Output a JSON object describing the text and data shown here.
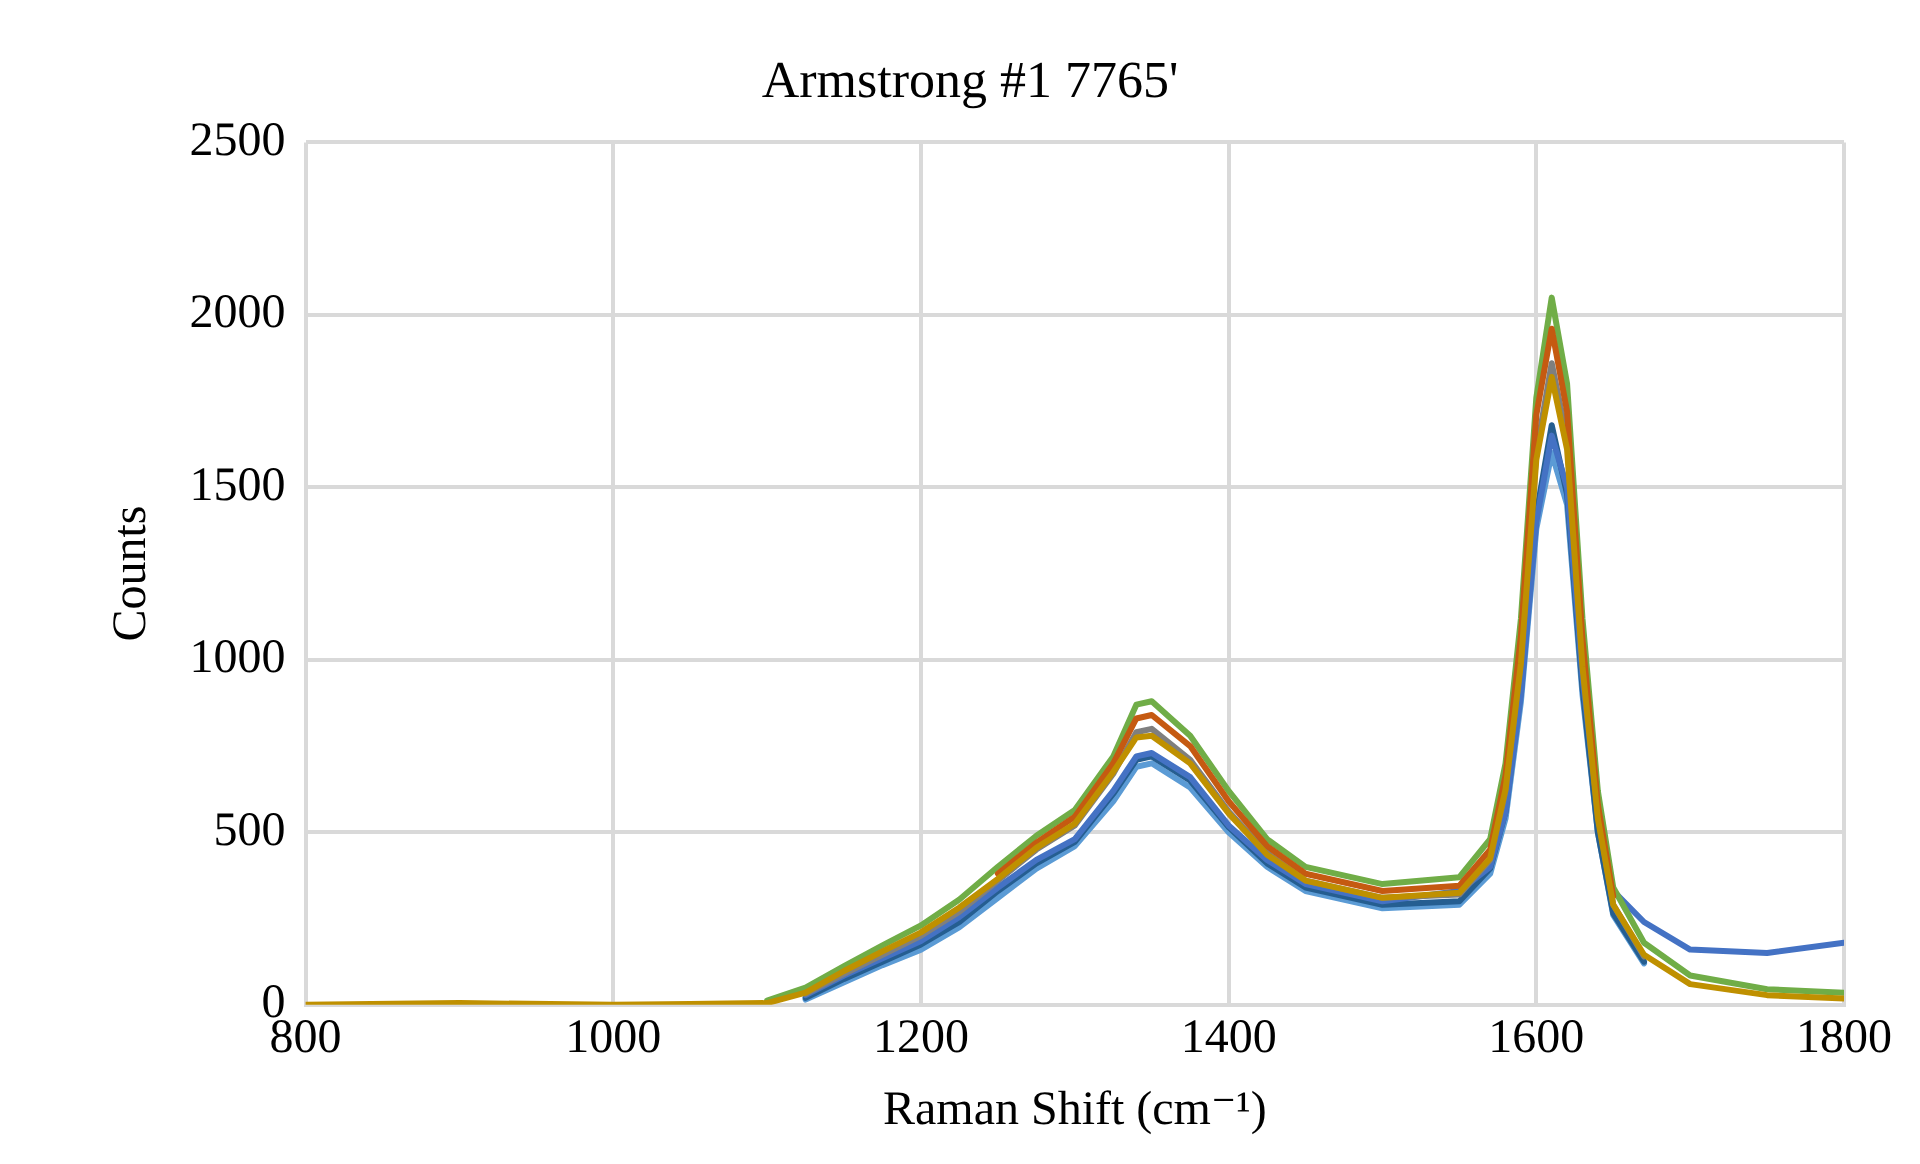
{
  "chart_data": {
    "type": "line",
    "title": "Armstrong #1 7765'",
    "xlabel": "Raman Shift (cm⁻¹)",
    "ylabel": "Counts",
    "x": [
      800,
      900,
      1000,
      1050,
      1100,
      1125,
      1150,
      1175,
      1200,
      1225,
      1250,
      1275,
      1300,
      1325,
      1340,
      1350,
      1375,
      1400,
      1425,
      1450,
      1500,
      1550,
      1570,
      1580,
      1590,
      1600,
      1610,
      1620,
      1630,
      1640,
      1650,
      1670,
      1700,
      1750,
      1800
    ],
    "series": [
      {
        "color": "#5b9bd5",
        "values": [
          null,
          null,
          null,
          null,
          null,
          15,
          65,
          115,
          160,
          225,
          310,
          395,
          460,
          590,
          690,
          700,
          630,
          500,
          400,
          330,
          280,
          290,
          380,
          540,
          880,
          1380,
          1600,
          1450,
          900,
          500,
          260,
          120,
          null,
          null,
          null
        ]
      },
      {
        "color": "#255e91",
        "values": [
          null,
          null,
          null,
          null,
          null,
          20,
          75,
          125,
          175,
          240,
          330,
          410,
          472,
          612,
          710,
          720,
          650,
          515,
          410,
          340,
          290,
          300,
          395,
          560,
          910,
          1420,
          1680,
          1480,
          920,
          500,
          265,
          125,
          null,
          null,
          null
        ]
      },
      {
        "color": "#4472c4",
        "values": [
          null,
          null,
          null,
          null,
          null,
          28,
          85,
          135,
          185,
          255,
          340,
          420,
          480,
          620,
          720,
          730,
          660,
          520,
          420,
          350,
          300,
          330,
          400,
          560,
          900,
          1400,
          1650,
          1500,
          950,
          560,
          330,
          240,
          160,
          150,
          180
        ]
      },
      {
        "color": "#7f7f7f",
        "values": [
          null,
          null,
          null,
          null,
          null,
          32,
          90,
          145,
          200,
          270,
          360,
          450,
          520,
          670,
          790,
          800,
          710,
          560,
          440,
          360,
          310,
          320,
          420,
          620,
          1000,
          1600,
          1860,
          1640,
          1000,
          550,
          290,
          140,
          null,
          null,
          null
        ]
      },
      {
        "color": "#70ad47",
        "values": [
          null,
          null,
          null,
          null,
          12,
          50,
          112,
          172,
          230,
          305,
          400,
          490,
          565,
          720,
          870,
          880,
          780,
          620,
          480,
          400,
          350,
          370,
          480,
          700,
          1120,
          1760,
          2050,
          1800,
          1120,
          620,
          340,
          180,
          85,
          45,
          35
        ]
      },
      {
        "color": "#c55a11",
        "values": [
          null,
          null,
          null,
          null,
          null,
          null,
          null,
          null,
          null,
          null,
          380,
          470,
          545,
          700,
          830,
          840,
          750,
          590,
          460,
          380,
          330,
          345,
          450,
          665,
          1070,
          1710,
          1960,
          1720,
          1060,
          580,
          315,
          null,
          null,
          null,
          null
        ]
      },
      {
        "color": "#bf9000",
        "values": [
          0,
          5,
          0,
          2,
          5,
          35,
          98,
          155,
          210,
          282,
          365,
          455,
          525,
          675,
          775,
          780,
          700,
          555,
          435,
          360,
          310,
          325,
          425,
          625,
          990,
          1580,
          1820,
          1610,
          980,
          540,
          290,
          145,
          60,
          28,
          18
        ]
      }
    ],
    "xlim": [
      800,
      1800
    ],
    "xticks": [
      800,
      1000,
      1200,
      1400,
      1600,
      1800
    ],
    "ylim": [
      0,
      2500
    ],
    "yticks": [
      0,
      500,
      1000,
      1500,
      2000,
      2500
    ],
    "grid": true,
    "legend": false,
    "marker": "none",
    "line_style": "solid"
  }
}
